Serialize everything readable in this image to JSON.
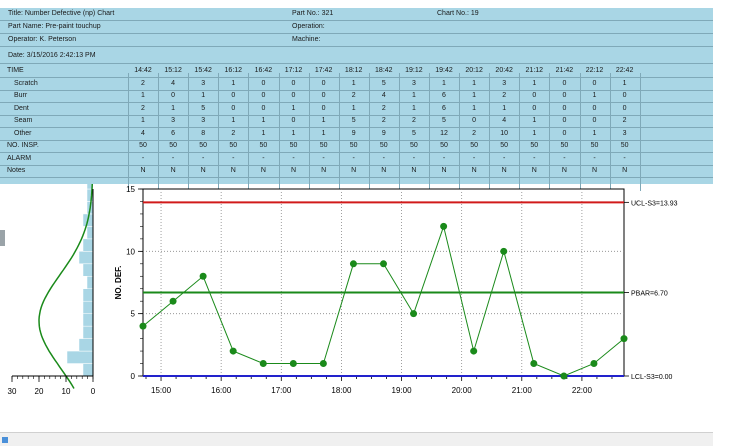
{
  "header": {
    "title": "Title: Number Defective (np) Chart",
    "part_no": "Part No.: 321",
    "chart_no": "Chart No.: 19",
    "part_name": "Part Name: Pre-paint touchup",
    "operation": "Operation:",
    "operator": "Operator: K. Peterson",
    "machine": "Machine:",
    "date": "Date: 3/15/2016 2:42:13 PM"
  },
  "table": {
    "time_label": "TIME",
    "times": [
      "14:42",
      "15:12",
      "15:42",
      "16:12",
      "16:42",
      "17:12",
      "17:42",
      "18:12",
      "18:42",
      "19:12",
      "19:42",
      "20:12",
      "20:42",
      "21:12",
      "21:42",
      "22:12",
      "22:42"
    ],
    "rows": [
      {
        "label": "Scratch",
        "values": [
          "2",
          "4",
          "3",
          "1",
          "0",
          "0",
          "0",
          "1",
          "5",
          "3",
          "1",
          "1",
          "3",
          "1",
          "0",
          "0",
          "1"
        ]
      },
      {
        "label": "Burr",
        "values": [
          "1",
          "0",
          "1",
          "0",
          "0",
          "0",
          "0",
          "2",
          "4",
          "1",
          "6",
          "1",
          "2",
          "0",
          "0",
          "1",
          "0"
        ]
      },
      {
        "label": "Dent",
        "values": [
          "2",
          "1",
          "5",
          "0",
          "0",
          "1",
          "0",
          "1",
          "2",
          "1",
          "6",
          "1",
          "1",
          "0",
          "0",
          "0",
          "0"
        ]
      },
      {
        "label": "Seam",
        "values": [
          "1",
          "3",
          "3",
          "1",
          "1",
          "0",
          "1",
          "5",
          "2",
          "2",
          "5",
          "0",
          "4",
          "1",
          "0",
          "0",
          "2"
        ]
      },
      {
        "label": "Other",
        "values": [
          "4",
          "6",
          "8",
          "2",
          "1",
          "1",
          "1",
          "9",
          "9",
          "5",
          "12",
          "2",
          "10",
          "1",
          "0",
          "1",
          "3"
        ]
      },
      {
        "label": "NO. INSP.",
        "values": [
          "50",
          "50",
          "50",
          "50",
          "50",
          "50",
          "50",
          "50",
          "50",
          "50",
          "50",
          "50",
          "50",
          "50",
          "50",
          "50",
          "50"
        ]
      },
      {
        "label": "ALARM",
        "values": [
          "-",
          "-",
          "-",
          "-",
          "-",
          "-",
          "-",
          "-",
          "-",
          "-",
          "-",
          "-",
          "-",
          "-",
          "-",
          "-",
          "-"
        ]
      },
      {
        "label": "Notes",
        "values": [
          "N",
          "N",
          "N",
          "N",
          "N",
          "N",
          "N",
          "N",
          "N",
          "N",
          "N",
          "N",
          "N",
          "N",
          "N",
          "N",
          "N"
        ]
      }
    ]
  },
  "chart_data": {
    "type": "line",
    "ylabel": "NO. DEF.",
    "ylim": [
      0,
      15
    ],
    "y_ticks": [
      "0",
      "5",
      "10",
      "15"
    ],
    "x_tick_labels": [
      "15:00",
      "16:00",
      "17:00",
      "18:00",
      "19:00",
      "20:00",
      "21:00",
      "22:00"
    ],
    "x": [
      "14:42",
      "15:12",
      "15:42",
      "16:12",
      "16:42",
      "17:12",
      "17:42",
      "18:12",
      "18:42",
      "19:12",
      "19:42",
      "20:12",
      "20:42",
      "21:12",
      "21:42",
      "22:12",
      "22:42"
    ],
    "values": [
      4,
      6,
      8,
      2,
      1,
      1,
      1,
      9,
      9,
      5,
      12,
      2,
      10,
      1,
      0,
      1,
      3
    ],
    "ucl": 13.93,
    "pbar": 6.7,
    "lcl": 0.0,
    "ucl_label": "UCL-S3=13.93",
    "pbar_label": "PBAR=6.70",
    "lcl_label": "LCL-S3=0.00",
    "series_color": "#1a8a1a",
    "ucl_color": "#d11a1a",
    "pbar_color": "#1a8a1a",
    "lcl_color": "#2222cc",
    "grid": true
  },
  "histogram": {
    "x_ticks": [
      "30",
      "20",
      "10",
      "0"
    ],
    "bar_color": "#a9d6e5",
    "curve_color": "#1a8a1a"
  }
}
